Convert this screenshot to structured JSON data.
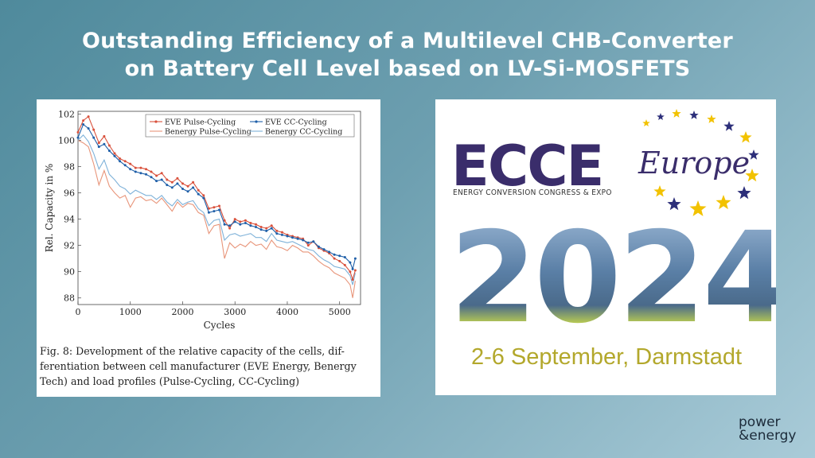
{
  "title": {
    "line1": "Outstanding Efficiency of a Multilevel CHB-Converter",
    "line2": "on Battery Cell Level based on LV-Si-MOSFETS"
  },
  "figure": {
    "caption_lines": [
      "Fig. 8: Development of the relative capacity of the cells, dif-",
      "ferentiation between cell manufacturer (EVE Energy, Benergy",
      "Tech) and load profiles (Pulse-Cycling, CC-Cycling)"
    ]
  },
  "chart_data": {
    "type": "line",
    "xlabel": "Cycles",
    "ylabel": "Rel. Capacity in %",
    "xlim": [
      0,
      5400
    ],
    "ylim": [
      87.5,
      102.2
    ],
    "xticks": [
      0,
      1000,
      2000,
      3000,
      4000,
      5000
    ],
    "yticks": [
      88,
      90,
      92,
      94,
      96,
      98,
      100,
      102
    ],
    "x": [
      0,
      100,
      200,
      300,
      400,
      500,
      600,
      700,
      800,
      900,
      1000,
      1100,
      1200,
      1300,
      1400,
      1500,
      1600,
      1700,
      1800,
      1900,
      2000,
      2100,
      2200,
      2300,
      2400,
      2500,
      2600,
      2700,
      2800,
      2900,
      3000,
      3100,
      3200,
      3300,
      3400,
      3500,
      3600,
      3700,
      3800,
      3900,
      4000,
      4100,
      4200,
      4300,
      4400,
      4500,
      4600,
      4700,
      4800,
      4900,
      5000,
      5100,
      5200,
      5250,
      5300
    ],
    "series": [
      {
        "name": "EVE Pulse-Cycling",
        "color": "#d9513c",
        "marker": "dot",
        "values": [
          100.6,
          101.5,
          101.8,
          100.8,
          99.8,
          100.3,
          99.6,
          99.0,
          98.6,
          98.4,
          98.2,
          97.9,
          97.9,
          97.8,
          97.6,
          97.3,
          97.5,
          97.0,
          96.8,
          97.1,
          96.7,
          96.5,
          96.8,
          96.2,
          95.8,
          94.8,
          94.9,
          95.0,
          93.9,
          93.3,
          94.0,
          93.8,
          93.9,
          93.7,
          93.6,
          93.4,
          93.3,
          93.5,
          93.1,
          93.0,
          92.8,
          92.7,
          92.6,
          92.5,
          92.0,
          92.3,
          91.8,
          91.6,
          91.4,
          91.0,
          90.8,
          90.5,
          90.0,
          89.4,
          90.1
        ]
      },
      {
        "name": "EVE CC-Cycling",
        "color": "#1f5fa8",
        "marker": "dot",
        "values": [
          100.2,
          101.2,
          100.9,
          100.2,
          99.5,
          99.7,
          99.2,
          98.8,
          98.4,
          98.1,
          97.8,
          97.6,
          97.5,
          97.4,
          97.2,
          96.9,
          97.0,
          96.6,
          96.4,
          96.7,
          96.3,
          96.1,
          96.4,
          95.9,
          95.6,
          94.5,
          94.6,
          94.7,
          93.6,
          93.5,
          93.8,
          93.6,
          93.7,
          93.5,
          93.4,
          93.2,
          93.1,
          93.3,
          92.9,
          92.8,
          92.7,
          92.6,
          92.5,
          92.4,
          92.2,
          92.3,
          91.9,
          91.7,
          91.5,
          91.3,
          91.2,
          91.1,
          90.7,
          90.2,
          91.0
        ]
      },
      {
        "name": "Benergy Pulse-Cycling",
        "color": "#e8957a",
        "marker": "none",
        "values": [
          100.0,
          99.8,
          99.5,
          98.2,
          96.6,
          97.7,
          96.5,
          96.0,
          95.6,
          95.8,
          94.9,
          95.6,
          95.7,
          95.4,
          95.5,
          95.2,
          95.6,
          95.1,
          94.6,
          95.3,
          94.9,
          95.2,
          95.1,
          94.5,
          94.3,
          92.9,
          93.5,
          93.6,
          91.0,
          92.2,
          91.8,
          92.1,
          91.9,
          92.3,
          92.0,
          92.1,
          91.7,
          92.4,
          91.9,
          91.8,
          91.6,
          92.0,
          91.8,
          91.5,
          91.5,
          91.2,
          90.8,
          90.5,
          90.3,
          89.9,
          89.7,
          89.5,
          89.0,
          88.0,
          89.3
        ]
      },
      {
        "name": "Benergy CC-Cycling",
        "color": "#7fb2d9",
        "marker": "none",
        "values": [
          100.0,
          100.4,
          99.9,
          99.0,
          97.8,
          98.5,
          97.4,
          97.0,
          96.5,
          96.3,
          95.9,
          96.2,
          96.0,
          95.8,
          95.8,
          95.5,
          95.8,
          95.3,
          95.0,
          95.5,
          95.1,
          95.3,
          95.4,
          94.8,
          94.5,
          93.5,
          93.9,
          94.0,
          92.4,
          92.8,
          92.9,
          92.7,
          92.8,
          92.9,
          92.6,
          92.6,
          92.3,
          92.9,
          92.4,
          92.3,
          92.2,
          92.3,
          92.1,
          91.9,
          91.7,
          91.6,
          91.2,
          90.9,
          90.7,
          90.4,
          90.3,
          90.2,
          89.7,
          89.0,
          89.9
        ]
      }
    ]
  },
  "event": {
    "logo_main": "ECCE",
    "logo_region": "Europe",
    "logo_subtitle": "ENERGY CONVERSION CONGRESS & EXPO",
    "year": "2024",
    "dates": "2-6 September, Darmstadt"
  },
  "brand": {
    "line1": "power",
    "line2": "&energy"
  }
}
